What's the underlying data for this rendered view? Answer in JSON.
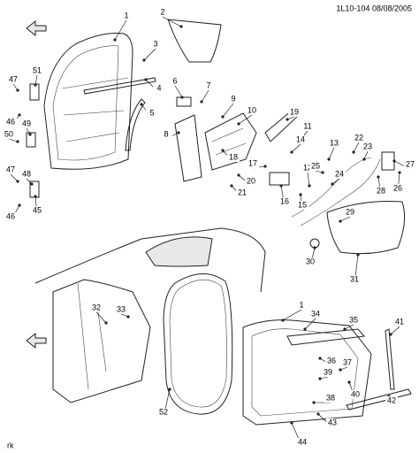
{
  "header": {
    "text": "1L10-104 08/08/2005"
  },
  "footer": {
    "text": "rk"
  },
  "callouts": [
    "1",
    "2",
    "3",
    "4",
    "5",
    "6",
    "7",
    "9",
    "10",
    "8",
    "19",
    "11",
    "14",
    "13",
    "22",
    "23",
    "12",
    "17",
    "25",
    "24",
    "26",
    "27",
    "28",
    "18",
    "20",
    "21",
    "16",
    "15",
    "29",
    "30",
    "31",
    "51",
    "47",
    "49",
    "50",
    "46",
    "47",
    "48",
    "45",
    "46",
    "32",
    "33",
    "52",
    "1",
    "34",
    "35",
    "41",
    "36",
    "37",
    "39",
    "38",
    "40",
    "42",
    "43",
    "44"
  ]
}
